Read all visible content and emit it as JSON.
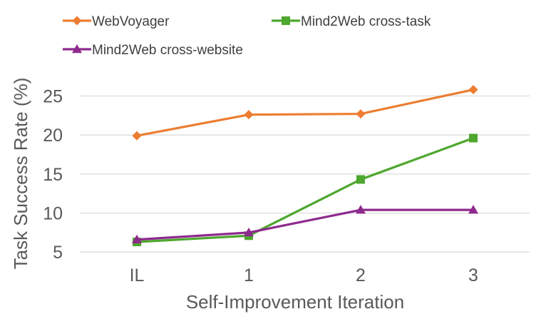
{
  "chart_data": {
    "type": "line",
    "title": "",
    "xlabel": "Self-Improvement Iteration",
    "ylabel": "Task Success Rate (%)",
    "categories": [
      "IL",
      "1",
      "2",
      "3"
    ],
    "yticks": [
      5,
      10,
      15,
      20,
      25
    ],
    "ylim": [
      4.2,
      26.5
    ],
    "grid": true,
    "legend_position": "top",
    "series": [
      {
        "name": "WebVoyager",
        "color": "#ED7D31",
        "marker": "diamond",
        "values": [
          19.9,
          22.6,
          22.7,
          25.8
        ]
      },
      {
        "name": "Mind2Web cross-task",
        "color": "#4EA72E",
        "marker": "square",
        "values": [
          6.3,
          7.1,
          14.3,
          19.6
        ]
      },
      {
        "name": "Mind2Web cross-website",
        "color": "#8E2A8E",
        "marker": "triangle",
        "values": [
          6.6,
          7.5,
          10.4,
          10.4
        ]
      }
    ]
  }
}
